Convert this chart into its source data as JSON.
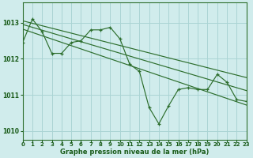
{
  "title": "Graphe pression niveau de la mer (hPa)",
  "bg_color": "#d0ecec",
  "grid_color": "#aad4d4",
  "line_color": "#2d6e2d",
  "text_color": "#1a5c1a",
  "xlim": [
    0,
    23
  ],
  "ylim": [
    1009.75,
    1013.55
  ],
  "yticks": [
    1010,
    1011,
    1012,
    1013
  ],
  "xticks": [
    0,
    1,
    2,
    3,
    4,
    5,
    6,
    7,
    8,
    9,
    10,
    11,
    12,
    13,
    14,
    15,
    16,
    17,
    18,
    19,
    20,
    21,
    22,
    23
  ],
  "main_x": [
    0,
    1,
    2,
    3,
    4,
    5,
    6,
    7,
    8,
    9,
    10,
    11,
    12,
    13,
    14,
    15,
    16,
    17,
    18,
    19,
    20,
    21,
    22,
    23
  ],
  "main_y": [
    1012.45,
    1013.1,
    1012.75,
    1012.15,
    1012.15,
    1012.45,
    1012.5,
    1012.8,
    1012.8,
    1012.87,
    1012.55,
    1011.85,
    1011.65,
    1010.65,
    1010.2,
    1010.7,
    1011.15,
    1011.2,
    1011.15,
    1011.15,
    1011.57,
    1011.35,
    1010.87,
    1010.82
  ],
  "trend_lines": [
    {
      "x0": 0,
      "y0": 1013.05,
      "x1": 23,
      "y1": 1011.48
    },
    {
      "x0": 0,
      "y0": 1012.95,
      "x1": 23,
      "y1": 1011.12
    },
    {
      "x0": 0,
      "y0": 1012.82,
      "x1": 23,
      "y1": 1010.72
    }
  ]
}
